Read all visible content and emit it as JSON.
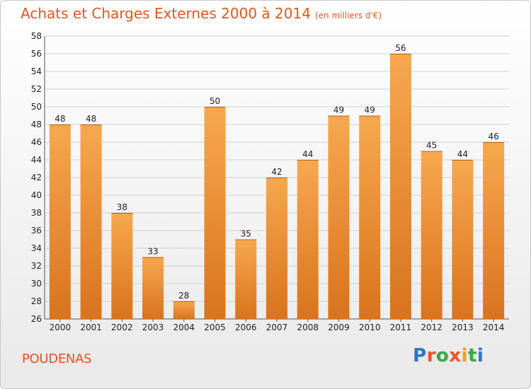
{
  "header": {
    "title": "Achats et Charges Externes 2000 à 2014",
    "unit": "(en milliers d'€)"
  },
  "commune": "POUDENAS",
  "logo": {
    "text": "Proxiti",
    "letter_colors": [
      "#2f78c4",
      "#e8582c",
      "#39a845",
      "#e8582c",
      "#f2a11d",
      "#39a845",
      "#2f78c4"
    ]
  },
  "colors": {
    "bar_light": "#f7a84e",
    "bar_dark": "#d9731d",
    "grid": "#d0d0d0",
    "title": "#e0561d"
  },
  "chart_data": {
    "type": "bar",
    "categories": [
      "2000",
      "2001",
      "2002",
      "2003",
      "2004",
      "2005",
      "2006",
      "2007",
      "2008",
      "2009",
      "2010",
      "2011",
      "2012",
      "2013",
      "2014"
    ],
    "values": [
      48,
      48,
      38,
      33,
      28,
      50,
      35,
      42,
      44,
      49,
      49,
      56,
      45,
      44,
      46
    ],
    "ylim": [
      26,
      58
    ],
    "yticks": [
      26,
      28,
      30,
      32,
      34,
      36,
      38,
      40,
      42,
      44,
      46,
      48,
      50,
      52,
      54,
      56,
      58
    ],
    "grid": true,
    "data_labels": true
  }
}
